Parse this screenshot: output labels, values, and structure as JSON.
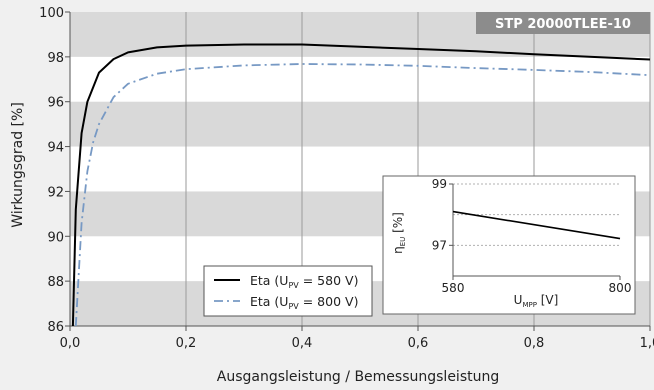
{
  "chart_data": [
    {
      "type": "line",
      "title": "STP 20000TLEE-10",
      "xlabel": "Ausgangsleistung / Bemessungsleistung",
      "ylabel": "Wirkungsgrad [%]",
      "xlim": [
        0,
        1
      ],
      "ylim": [
        86,
        100
      ],
      "x_ticks": [
        "0,0",
        "0,2",
        "0,4",
        "0,6",
        "0,8",
        "1,0"
      ],
      "y_ticks": [
        "86",
        "88",
        "90",
        "92",
        "94",
        "96",
        "98",
        "100"
      ],
      "background_bands": "alternating gray/white horizontal bands",
      "legend_position": "bottom-left",
      "series": [
        {
          "name": "Eta (U_PV = 580 V)",
          "legend_label": "Eta (U",
          "legend_sub": "PV",
          "legend_suffix": " = 580 V)",
          "color": "#000000",
          "style": "solid",
          "x": [
            0.005,
            0.01,
            0.02,
            0.03,
            0.05,
            0.075,
            0.1,
            0.15,
            0.2,
            0.3,
            0.4,
            0.5,
            0.6,
            0.7,
            0.8,
            0.9,
            1.0
          ],
          "values": [
            86.0,
            91.2,
            94.6,
            96.0,
            97.3,
            97.9,
            98.2,
            98.42,
            98.5,
            98.55,
            98.55,
            98.45,
            98.35,
            98.25,
            98.12,
            98.0,
            97.88
          ]
        },
        {
          "name": "Eta (U_PV = 800 V)",
          "legend_label": "Eta (U",
          "legend_sub": "PV",
          "legend_suffix": " = 800 V)",
          "color": "#7799c4",
          "style": "dash-dot",
          "x": [
            0.01,
            0.02,
            0.03,
            0.04,
            0.05,
            0.075,
            0.1,
            0.15,
            0.2,
            0.3,
            0.4,
            0.5,
            0.6,
            0.7,
            0.8,
            0.9,
            1.0
          ],
          "values": [
            86.0,
            90.6,
            92.9,
            94.2,
            95.0,
            96.2,
            96.8,
            97.25,
            97.45,
            97.62,
            97.68,
            97.66,
            97.6,
            97.5,
            97.42,
            97.32,
            97.18
          ]
        }
      ]
    },
    {
      "type": "line",
      "xlabel_main": "U",
      "xlabel_sub": "MPP",
      "xlabel_suffix": " [V]",
      "ylabel_main": "η",
      "ylabel_sub": "EU",
      "ylabel_suffix": " [%]",
      "xlim": [
        580,
        800
      ],
      "ylim": [
        96,
        99
      ],
      "x_ticks": [
        "580",
        "800"
      ],
      "y_ticks": [
        "97",
        "99"
      ],
      "series": [
        {
          "color": "#000000",
          "x": [
            580,
            800
          ],
          "values": [
            98.1,
            97.22
          ]
        }
      ]
    }
  ]
}
